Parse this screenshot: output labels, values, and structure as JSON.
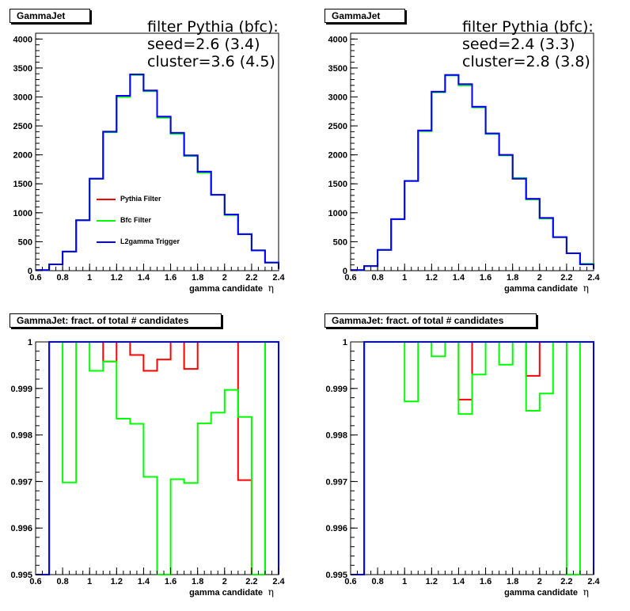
{
  "colors": {
    "pythia": "#ff0000",
    "bfc": "#00ff00",
    "l2": "#0000ff"
  },
  "chart_data": [
    {
      "type": "line",
      "title": "GammaJet",
      "xlabel": "gamma candidate",
      "xlabel_symbol": "η",
      "xlim": [
        0.6,
        2.4
      ],
      "ylim": [
        0,
        4100
      ],
      "xticks": [
        0.6,
        0.8,
        1,
        1.2,
        1.4,
        1.6,
        1.8,
        2,
        2.2,
        2.4
      ],
      "xtick_labels": [
        "0.6",
        "0.8",
        "1",
        "1.2",
        "1.4",
        "1.6",
        "1.8",
        "2",
        "2.2",
        "2.4"
      ],
      "yticks": [
        0,
        500,
        1000,
        1500,
        2000,
        2500,
        3000,
        3500,
        4000
      ],
      "ytick_labels": [
        "0",
        "500",
        "1000",
        "1500",
        "2000",
        "2500",
        "3000",
        "3500",
        "4000"
      ],
      "info_lines": [
        "filter Pythia (bfc):",
        "seed=2.6 (3.4)",
        "cluster=3.6 (4.5)"
      ],
      "legend": [
        "Pythia Filter",
        "Bfc Filter",
        "L2gamma Trigger"
      ],
      "bin_edges": [
        0.6,
        0.7,
        0.8,
        0.9,
        1.0,
        1.1,
        1.2,
        1.3,
        1.4,
        1.5,
        1.6,
        1.7,
        1.8,
        1.9,
        2.0,
        2.1,
        2.2,
        2.3,
        2.4
      ],
      "series": [
        {
          "name": "Pythia Filter",
          "values": [
            10,
            110,
            330,
            870,
            1590,
            2400,
            3020,
            3390,
            3110,
            2660,
            2380,
            1990,
            1710,
            1310,
            970,
            630,
            350,
            140,
            30
          ]
        },
        {
          "name": "Bfc Filter",
          "values": [
            10,
            110,
            330,
            870,
            1590,
            2390,
            3000,
            3380,
            3100,
            2640,
            2360,
            1980,
            1690,
            1310,
            960,
            630,
            350,
            140,
            30
          ]
        },
        {
          "name": "L2gamma Trigger",
          "values": [
            10,
            110,
            330,
            870,
            1590,
            2400,
            3020,
            3390,
            3110,
            2660,
            2380,
            1990,
            1710,
            1310,
            970,
            630,
            350,
            140,
            30
          ]
        }
      ]
    },
    {
      "type": "line",
      "title": "GammaJet",
      "xlabel": "gamma candidate",
      "xlabel_symbol": "η",
      "xlim": [
        0.6,
        2.4
      ],
      "ylim": [
        0,
        4100
      ],
      "xticks": [
        0.6,
        0.8,
        1,
        1.2,
        1.4,
        1.6,
        1.8,
        2,
        2.2,
        2.4
      ],
      "xtick_labels": [
        "0.6",
        "0.8",
        "1",
        "1.2",
        "1.4",
        "1.6",
        "1.8",
        "2",
        "2.2",
        "2.4"
      ],
      "yticks": [
        0,
        500,
        1000,
        1500,
        2000,
        2500,
        3000,
        3500,
        4000
      ],
      "ytick_labels": [
        "0",
        "500",
        "1000",
        "1500",
        "2000",
        "2500",
        "3000",
        "3500",
        "4000"
      ],
      "info_lines": [
        "filter Pythia (bfc):",
        "seed=2.4 (3.3)",
        "cluster=2.8 (3.8)"
      ],
      "bin_edges": [
        0.6,
        0.7,
        0.8,
        0.9,
        1.0,
        1.1,
        1.2,
        1.3,
        1.4,
        1.5,
        1.6,
        1.7,
        1.8,
        1.9,
        2.0,
        2.1,
        2.2,
        2.3,
        2.4
      ],
      "series": [
        {
          "name": "Pythia Filter",
          "values": [
            10,
            80,
            360,
            890,
            1550,
            2420,
            3090,
            3380,
            3220,
            2830,
            2370,
            2000,
            1590,
            1240,
            910,
            580,
            300,
            110,
            30
          ]
        },
        {
          "name": "Bfc Filter",
          "values": [
            10,
            80,
            360,
            890,
            1550,
            2410,
            3080,
            3370,
            3200,
            2820,
            2360,
            1990,
            1600,
            1230,
            900,
            580,
            300,
            120,
            30
          ]
        },
        {
          "name": "L2gamma Trigger",
          "values": [
            10,
            80,
            360,
            890,
            1550,
            2420,
            3090,
            3380,
            3220,
            2830,
            2370,
            2000,
            1590,
            1240,
            910,
            580,
            300,
            110,
            30
          ]
        }
      ]
    },
    {
      "type": "line",
      "title": "GammaJet: fract. of total # candidates",
      "xlabel": "gamma candidate",
      "xlabel_symbol": "η",
      "xlim": [
        0.6,
        2.4
      ],
      "ylim": [
        0.995,
        1.0
      ],
      "xticks": [
        0.6,
        0.8,
        1,
        1.2,
        1.4,
        1.6,
        1.8,
        2,
        2.2,
        2.4
      ],
      "xtick_labels": [
        "0.6",
        "0.8",
        "1",
        "1.2",
        "1.4",
        "1.6",
        "1.8",
        "2",
        "2.2",
        "2.4"
      ],
      "yticks": [
        0.995,
        0.996,
        0.997,
        0.998,
        0.999,
        1.0
      ],
      "ytick_labels": [
        "0.995",
        "0.996",
        "0.997",
        "0.998",
        "0.999",
        "1"
      ],
      "bin_edges": [
        0.6,
        0.7,
        0.8,
        0.9,
        1.0,
        1.1,
        1.2,
        1.3,
        1.4,
        1.5,
        1.6,
        1.7,
        1.8,
        1.9,
        2.0,
        2.1,
        2.2,
        2.3,
        2.4
      ],
      "series": [
        {
          "name": "Pythia Filter",
          "values": [
            0.995,
            1.0,
            1.0,
            1.0,
            1.0,
            0.99958,
            1.0,
            0.99972,
            0.99938,
            0.99962,
            1.0,
            0.99942,
            1.0,
            1.0,
            1.0,
            0.99703,
            0.995,
            1.0,
            0.995
          ]
        },
        {
          "name": "Bfc Filter",
          "values": [
            0.995,
            1.0,
            0.99698,
            1.0,
            0.99938,
            0.99958,
            0.99835,
            0.99824,
            0.9971,
            0.995,
            0.99705,
            0.99697,
            0.99825,
            0.99848,
            0.99897,
            0.99839,
            0.995,
            1.0,
            0.995
          ]
        },
        {
          "name": "L2gamma Trigger",
          "values": [
            0.995,
            1.0,
            1.0,
            1.0,
            1.0,
            1.0,
            1.0,
            1.0,
            1.0,
            1.0,
            1.0,
            1.0,
            1.0,
            1.0,
            1.0,
            1.0,
            1.0,
            1.0,
            0.995
          ]
        }
      ]
    },
    {
      "type": "line",
      "title": "GammaJet: fract. of total # candidates",
      "xlabel": "gamma candidate",
      "xlabel_symbol": "η",
      "xlim": [
        0.6,
        2.4
      ],
      "ylim": [
        0.995,
        1.0
      ],
      "xticks": [
        0.6,
        0.8,
        1,
        1.2,
        1.4,
        1.6,
        1.8,
        2,
        2.2,
        2.4
      ],
      "xtick_labels": [
        "0.6",
        "0.8",
        "1",
        "1.2",
        "1.4",
        "1.6",
        "1.8",
        "2",
        "2.2",
        "2.4"
      ],
      "yticks": [
        0.995,
        0.996,
        0.997,
        0.998,
        0.999,
        1.0
      ],
      "ytick_labels": [
        "0.995",
        "0.996",
        "0.997",
        "0.998",
        "0.999",
        "1"
      ],
      "bin_edges": [
        0.6,
        0.7,
        0.8,
        0.9,
        1.0,
        1.1,
        1.2,
        1.3,
        1.4,
        1.5,
        1.6,
        1.7,
        1.8,
        1.9,
        2.0,
        2.1,
        2.2,
        2.3,
        2.4
      ],
      "series": [
        {
          "name": "Pythia Filter",
          "values": [
            0.995,
            1.0,
            1.0,
            1.0,
            1.0,
            1.0,
            1.0,
            1.0,
            0.99876,
            1.0,
            1.0,
            1.0,
            1.0,
            0.99927,
            1.0,
            1.0,
            1.0,
            1.0,
            0.995
          ]
        },
        {
          "name": "Bfc Filter",
          "values": [
            0.995,
            1.0,
            1.0,
            1.0,
            0.99872,
            1.0,
            0.99969,
            1.0,
            0.99845,
            0.9993,
            1.0,
            0.99951,
            1.0,
            0.99852,
            0.99889,
            1.0,
            0.995,
            1.0,
            0.995
          ]
        },
        {
          "name": "L2gamma Trigger",
          "values": [
            0.995,
            1.0,
            1.0,
            1.0,
            1.0,
            1.0,
            1.0,
            1.0,
            1.0,
            1.0,
            1.0,
            1.0,
            1.0,
            1.0,
            1.0,
            1.0,
            1.0,
            1.0,
            0.995
          ]
        }
      ]
    }
  ]
}
